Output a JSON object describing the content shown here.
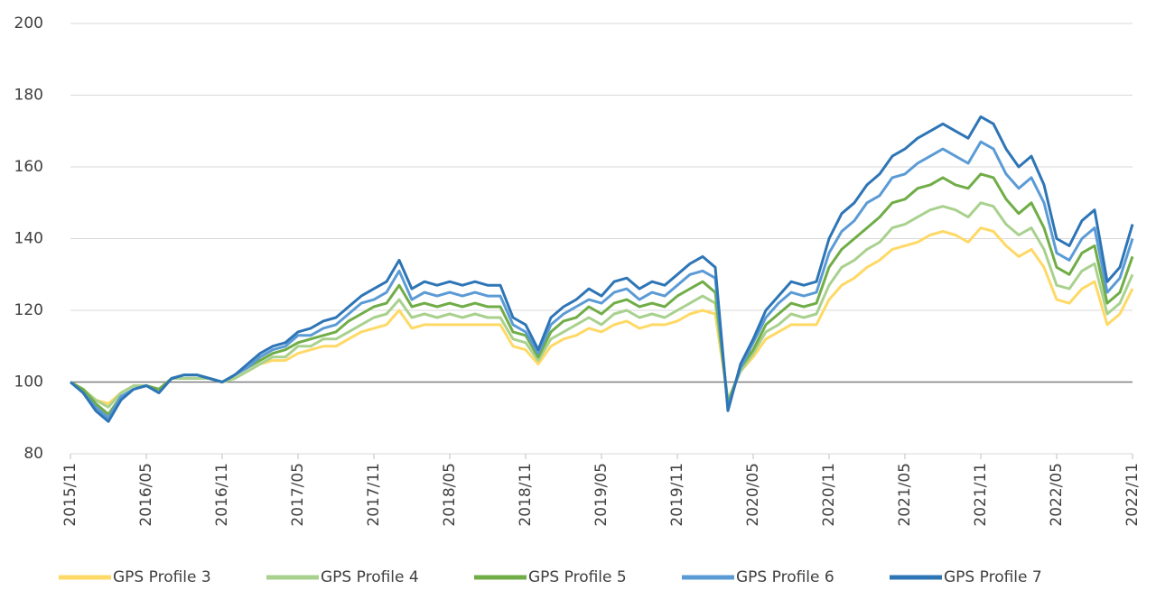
{
  "chart_data": {
    "type": "line",
    "x": [
      "2015/11",
      "2015/12",
      "2016/01",
      "2016/02",
      "2016/03",
      "2016/04",
      "2016/05",
      "2016/06",
      "2016/07",
      "2016/08",
      "2016/09",
      "2016/10",
      "2016/11",
      "2016/12",
      "2017/01",
      "2017/02",
      "2017/03",
      "2017/04",
      "2017/05",
      "2017/06",
      "2017/07",
      "2017/08",
      "2017/09",
      "2017/10",
      "2017/11",
      "2017/12",
      "2018/01",
      "2018/02",
      "2018/03",
      "2018/04",
      "2018/05",
      "2018/06",
      "2018/07",
      "2018/08",
      "2018/09",
      "2018/10",
      "2018/11",
      "2018/12",
      "2019/01",
      "2019/02",
      "2019/03",
      "2019/04",
      "2019/05",
      "2019/06",
      "2019/07",
      "2019/08",
      "2019/09",
      "2019/10",
      "2019/11",
      "2019/12",
      "2020/01",
      "2020/02",
      "2020/03",
      "2020/04",
      "2020/05",
      "2020/06",
      "2020/07",
      "2020/08",
      "2020/09",
      "2020/10",
      "2020/11",
      "2020/12",
      "2021/01",
      "2021/02",
      "2021/03",
      "2021/04",
      "2021/05",
      "2021/06",
      "2021/07",
      "2021/08",
      "2021/09",
      "2021/10",
      "2021/11",
      "2021/12",
      "2022/01",
      "2022/02",
      "2022/03",
      "2022/04",
      "2022/05",
      "2022/06",
      "2022/07",
      "2022/08",
      "2022/09",
      "2022/10",
      "2022/11"
    ],
    "xlim": [
      "2015/11",
      "2022/11"
    ],
    "xticks": [
      "2015/11",
      "2016/05",
      "2016/11",
      "2017/05",
      "2017/11",
      "2018/05",
      "2018/11",
      "2019/05",
      "2019/11",
      "2020/05",
      "2020/11",
      "2021/05",
      "2021/11",
      "2022/05",
      "2022/11"
    ],
    "ylim": [
      80,
      200
    ],
    "yticks": [
      80,
      100,
      120,
      140,
      160,
      180,
      200
    ],
    "grid": true,
    "reference_line": 100,
    "legend": "bottom",
    "series": [
      {
        "name": "GPS Profile 3",
        "color": "#ffd966",
        "values": [
          100,
          98,
          95,
          94,
          97,
          99,
          99,
          98,
          101,
          101,
          101,
          101,
          100,
          101,
          103,
          105,
          106,
          106,
          108,
          109,
          110,
          110,
          112,
          114,
          115,
          116,
          120,
          115,
          116,
          116,
          116,
          116,
          116,
          116,
          116,
          110,
          109,
          105,
          110,
          112,
          113,
          115,
          114,
          116,
          117,
          115,
          116,
          116,
          117,
          119,
          120,
          119,
          95,
          103,
          107,
          112,
          114,
          116,
          116,
          116,
          123,
          127,
          129,
          132,
          134,
          137,
          138,
          139,
          141,
          142,
          141,
          139,
          143,
          142,
          138,
          135,
          137,
          132,
          123,
          122,
          126,
          128,
          116,
          119,
          126
        ]
      },
      {
        "name": "GPS Profile 4",
        "color": "#a9d18e",
        "values": [
          100,
          98,
          95,
          93,
          97,
          99,
          99,
          98,
          101,
          101,
          101,
          101,
          100,
          101,
          103,
          105,
          107,
          107,
          110,
          110,
          112,
          112,
          114,
          116,
          118,
          119,
          123,
          118,
          119,
          118,
          119,
          118,
          119,
          118,
          118,
          112,
          111,
          106,
          112,
          114,
          116,
          118,
          116,
          119,
          120,
          118,
          119,
          118,
          120,
          122,
          124,
          122,
          95,
          103,
          108,
          114,
          116,
          119,
          118,
          119,
          127,
          132,
          134,
          137,
          139,
          143,
          144,
          146,
          148,
          149,
          148,
          146,
          150,
          149,
          144,
          141,
          143,
          137,
          127,
          126,
          131,
          133,
          119,
          122,
          130
        ]
      },
      {
        "name": "GPS Profile 5",
        "color": "#70ad47",
        "values": [
          100,
          98,
          94,
          91,
          96,
          98,
          99,
          98,
          101,
          102,
          102,
          101,
          100,
          102,
          104,
          106,
          108,
          109,
          111,
          112,
          113,
          114,
          117,
          119,
          121,
          122,
          127,
          121,
          122,
          121,
          122,
          121,
          122,
          121,
          121,
          114,
          113,
          107,
          114,
          117,
          118,
          121,
          119,
          122,
          123,
          121,
          122,
          121,
          124,
          126,
          128,
          125,
          94,
          104,
          109,
          116,
          119,
          122,
          121,
          122,
          132,
          137,
          140,
          143,
          146,
          150,
          151,
          154,
          155,
          157,
          155,
          154,
          158,
          157,
          151,
          147,
          150,
          143,
          132,
          130,
          136,
          138,
          122,
          125,
          135
        ]
      },
      {
        "name": "GPS Profile 6",
        "color": "#5b9bd5",
        "values": [
          100,
          97,
          93,
          90,
          96,
          98,
          99,
          97,
          101,
          102,
          102,
          101,
          100,
          102,
          104,
          107,
          109,
          110,
          113,
          113,
          115,
          116,
          119,
          122,
          123,
          125,
          131,
          123,
          125,
          124,
          125,
          124,
          125,
          124,
          124,
          116,
          114,
          108,
          116,
          119,
          121,
          123,
          122,
          125,
          126,
          123,
          125,
          124,
          127,
          130,
          131,
          129,
          93,
          104,
          111,
          118,
          122,
          125,
          124,
          125,
          136,
          142,
          145,
          150,
          152,
          157,
          158,
          161,
          163,
          165,
          163,
          161,
          167,
          165,
          158,
          154,
          157,
          150,
          136,
          134,
          140,
          143,
          125,
          129,
          140
        ]
      },
      {
        "name": "GPS Profile 7",
        "color": "#2e75b6",
        "values": [
          100,
          97,
          92,
          89,
          95,
          98,
          99,
          97,
          101,
          102,
          102,
          101,
          100,
          102,
          105,
          108,
          110,
          111,
          114,
          115,
          117,
          118,
          121,
          124,
          126,
          128,
          134,
          126,
          128,
          127,
          128,
          127,
          128,
          127,
          127,
          118,
          116,
          109,
          118,
          121,
          123,
          126,
          124,
          128,
          129,
          126,
          128,
          127,
          130,
          133,
          135,
          132,
          92,
          105,
          112,
          120,
          124,
          128,
          127,
          128,
          140,
          147,
          150,
          155,
          158,
          163,
          165,
          168,
          170,
          172,
          170,
          168,
          174,
          172,
          165,
          160,
          163,
          155,
          140,
          138,
          145,
          148,
          128,
          132,
          144
        ]
      }
    ]
  }
}
